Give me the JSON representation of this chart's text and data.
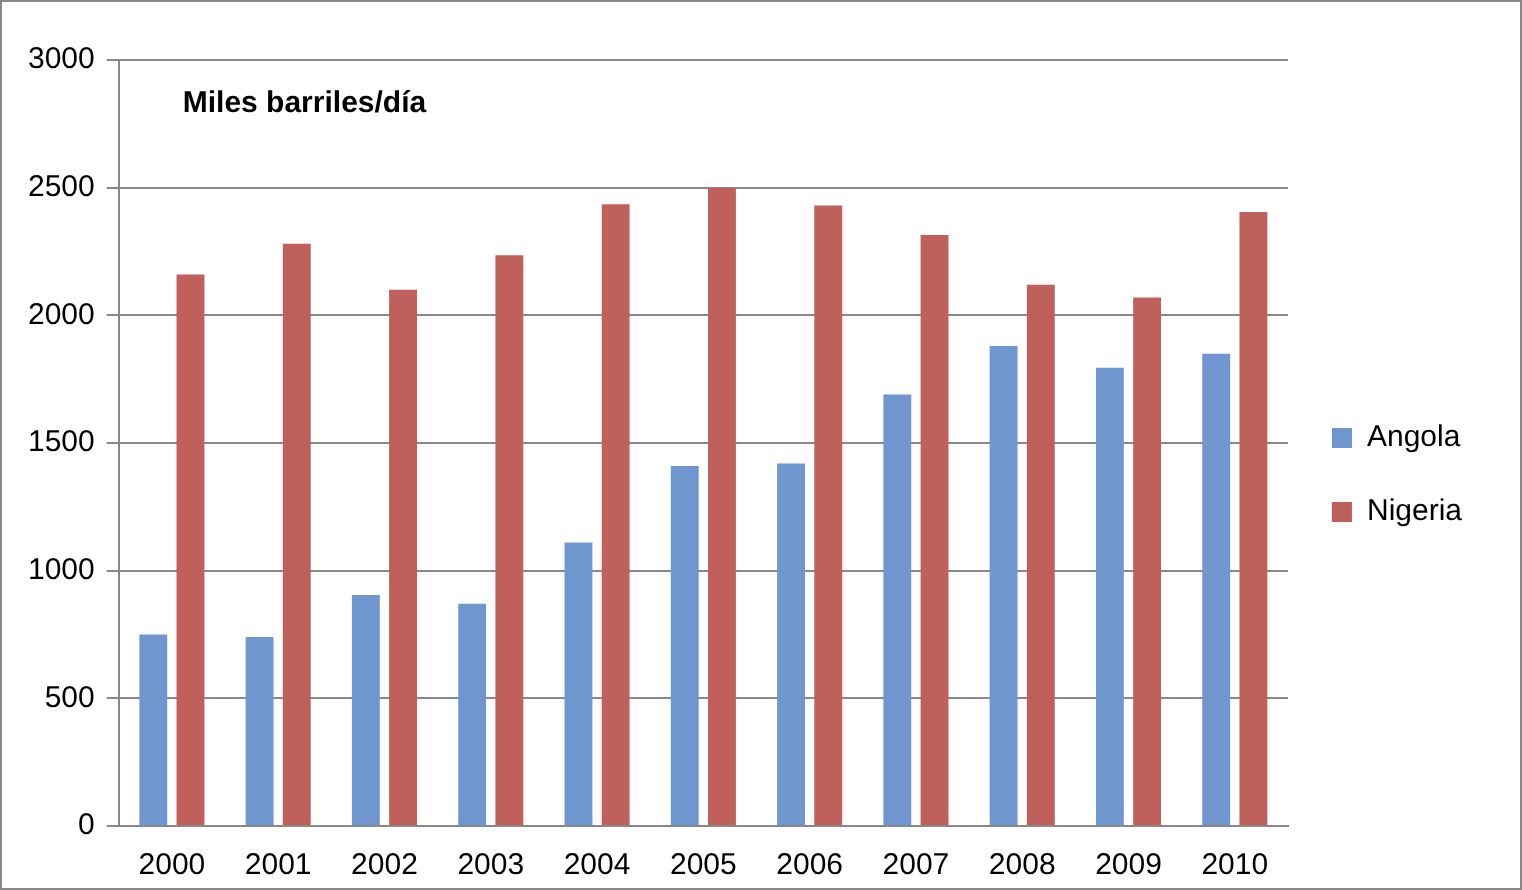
{
  "chart_data": {
    "type": "bar",
    "annotations": [
      "Miles barriles/día"
    ],
    "categories": [
      "2000",
      "2001",
      "2002",
      "2003",
      "2004",
      "2005",
      "2006",
      "2007",
      "2008",
      "2009",
      "2010"
    ],
    "series": [
      {
        "name": "Angola",
        "color": "#7096cf",
        "values": [
          750,
          740,
          905,
          870,
          1110,
          1410,
          1420,
          1690,
          1880,
          1795,
          1850
        ]
      },
      {
        "name": "Nigeria",
        "color": "#c0605b",
        "values": [
          2160,
          2280,
          2100,
          2235,
          2435,
          2500,
          2430,
          2315,
          2120,
          2070,
          2405
        ]
      }
    ],
    "ylim": [
      0,
      3000
    ],
    "yticks": [
      0,
      500,
      1000,
      1500,
      2000,
      2500,
      3000
    ],
    "grid": "y",
    "legend": "right"
  }
}
